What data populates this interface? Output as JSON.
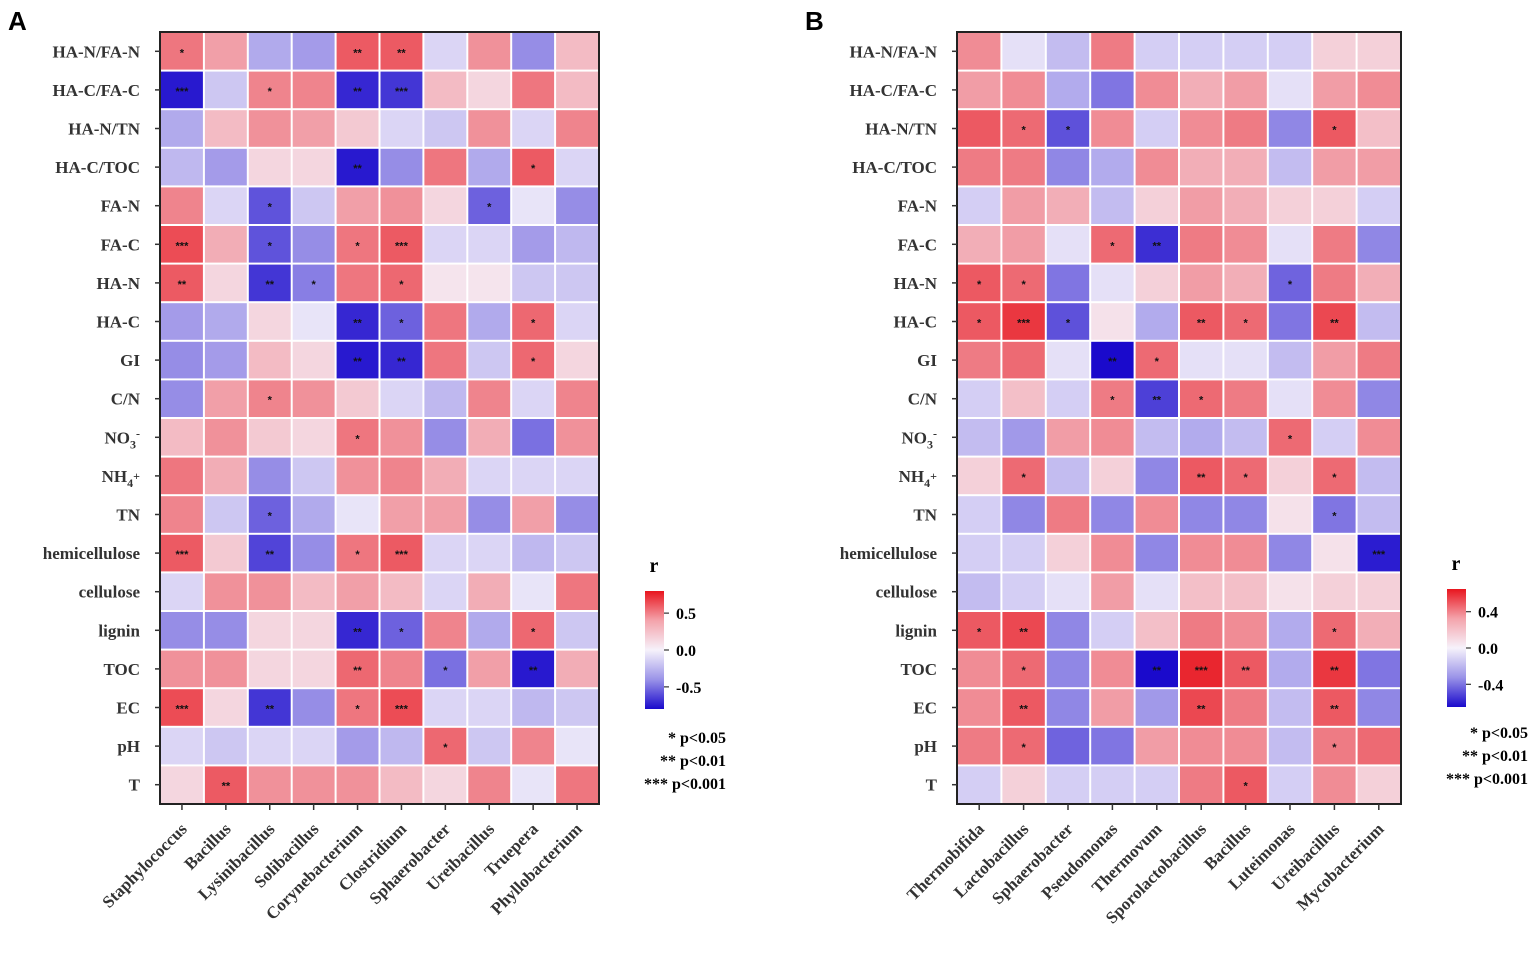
{
  "chart_data": [
    {
      "panel": "A",
      "type": "heatmap",
      "rows": [
        "HA-N/FA-N",
        "HA-C/FA-C",
        "HA-N/TN",
        "HA-C/TOC",
        "FA-N",
        "FA-C",
        "HA-N",
        "HA-C",
        "GI",
        "C/N",
        "NO3-",
        "NH4+",
        "TN",
        "hemicellulose",
        "cellulose",
        "lignin",
        "TOC",
        "EC",
        "pH",
        "T"
      ],
      "row_labels": [
        "HA-N/FA-N",
        "HA-C/FA-C",
        "HA-N/TN",
        "HA-C/TOC",
        "FA-N",
        "FA-C",
        "HA-N",
        "HA-C",
        "GI",
        "C/N",
        "NO",
        "NH",
        "TN",
        "hemicellulose",
        "cellulose",
        "lignin",
        "TOC",
        "EC",
        "pH",
        "T"
      ],
      "row_subs": [
        "",
        "",
        "",
        "",
        "",
        "",
        "",
        "",
        "",
        "",
        "3",
        "4",
        "",
        "",
        "",
        "",
        "",
        "",
        "",
        ""
      ],
      "row_sups": [
        "",
        "",
        "",
        "",
        "",
        "",
        "",
        "",
        "",
        "",
        "-",
        "+",
        "",
        "",
        "",
        "",
        "",
        "",
        "",
        ""
      ],
      "columns": [
        "Staphylococcus",
        "Bacillus",
        "Lysinibacillus",
        "Solibacillus",
        "Corynebacterium",
        "Clostridium",
        "Sphaerobacter",
        "Ureibacillus",
        "Truepera",
        "Phyllobacterium"
      ],
      "values": [
        [
          0.45,
          0.3,
          -0.25,
          -0.3,
          0.55,
          0.55,
          -0.1,
          0.35,
          -0.35,
          0.2
        ],
        [
          -0.75,
          -0.15,
          0.4,
          0.4,
          -0.7,
          -0.65,
          0.2,
          0.1,
          0.45,
          0.2
        ],
        [
          -0.25,
          0.2,
          0.35,
          0.3,
          0.15,
          -0.1,
          -0.15,
          0.35,
          -0.1,
          0.4
        ],
        [
          -0.2,
          -0.3,
          0.1,
          0.1,
          -0.75,
          -0.35,
          0.45,
          -0.25,
          0.55,
          -0.1
        ],
        [
          0.4,
          -0.1,
          -0.55,
          -0.15,
          0.3,
          0.35,
          0.1,
          -0.5,
          -0.05,
          -0.35
        ],
        [
          0.6,
          0.25,
          -0.55,
          -0.35,
          0.45,
          0.55,
          -0.1,
          -0.1,
          -0.3,
          -0.2
        ],
        [
          0.55,
          0.1,
          -0.65,
          -0.4,
          0.45,
          0.5,
          0.05,
          0.05,
          -0.15,
          -0.15
        ],
        [
          -0.3,
          -0.25,
          0.1,
          -0.05,
          -0.7,
          -0.5,
          0.45,
          -0.25,
          0.5,
          -0.1
        ],
        [
          -0.35,
          -0.3,
          0.2,
          0.1,
          -0.75,
          -0.7,
          0.45,
          -0.15,
          0.5,
          0.1
        ],
        [
          -0.35,
          0.3,
          0.4,
          0.35,
          0.15,
          -0.1,
          -0.2,
          0.4,
          -0.1,
          0.4
        ],
        [
          0.2,
          0.35,
          0.15,
          0.1,
          0.45,
          0.35,
          -0.35,
          0.25,
          -0.45,
          0.35
        ],
        [
          0.45,
          0.25,
          -0.35,
          -0.15,
          0.35,
          0.4,
          0.25,
          -0.1,
          -0.1,
          -0.1
        ],
        [
          0.4,
          -0.15,
          -0.5,
          -0.25,
          -0.05,
          0.3,
          0.3,
          -0.35,
          0.3,
          -0.35
        ],
        [
          0.55,
          0.15,
          -0.6,
          -0.35,
          0.45,
          0.55,
          -0.1,
          -0.1,
          -0.2,
          -0.15
        ],
        [
          -0.1,
          0.35,
          0.35,
          0.2,
          0.3,
          0.2,
          -0.1,
          0.25,
          -0.05,
          0.45
        ],
        [
          -0.35,
          -0.35,
          0.1,
          0.1,
          -0.7,
          -0.5,
          0.4,
          -0.25,
          0.5,
          -0.15
        ],
        [
          0.35,
          0.35,
          0.1,
          0.1,
          0.5,
          0.4,
          -0.45,
          0.3,
          -0.75,
          0.25
        ],
        [
          0.6,
          0.1,
          -0.65,
          -0.35,
          0.45,
          0.6,
          -0.1,
          -0.1,
          -0.2,
          -0.15
        ],
        [
          -0.1,
          -0.15,
          -0.1,
          -0.1,
          -0.3,
          -0.2,
          0.5,
          -0.15,
          0.4,
          -0.05
        ],
        [
          0.1,
          0.55,
          0.35,
          0.35,
          0.35,
          0.2,
          0.1,
          0.4,
          -0.05,
          0.45
        ]
      ],
      "significance": [
        [
          "*",
          "",
          "",
          "",
          "**",
          "**",
          "",
          "",
          "",
          ""
        ],
        [
          "***",
          "",
          "*",
          "",
          "**",
          "***",
          "",
          "",
          "",
          ""
        ],
        [
          "",
          "",
          "",
          "",
          "",
          "",
          "",
          "",
          "",
          ""
        ],
        [
          "",
          "",
          "",
          "",
          "**",
          "",
          "",
          "",
          "*",
          ""
        ],
        [
          "",
          "",
          "*",
          "",
          "",
          "",
          "",
          "*",
          "",
          ""
        ],
        [
          "***",
          "",
          "*",
          "",
          "*",
          "***",
          "",
          "",
          "",
          ""
        ],
        [
          "**",
          "",
          "**",
          "*",
          "",
          "*",
          "",
          "",
          "",
          ""
        ],
        [
          "",
          "",
          "",
          "",
          "**",
          "*",
          "",
          "",
          "*",
          ""
        ],
        [
          "",
          "",
          "",
          "",
          "**",
          "**",
          "",
          "",
          "*",
          ""
        ],
        [
          "",
          "",
          "*",
          "",
          "",
          "",
          "",
          "",
          "",
          ""
        ],
        [
          "",
          "",
          "",
          "",
          "*",
          "",
          "",
          "",
          "",
          ""
        ],
        [
          "",
          "",
          "",
          "",
          "",
          "",
          "",
          "",
          "",
          ""
        ],
        [
          "",
          "",
          "*",
          "",
          "",
          "",
          "",
          "",
          "",
          ""
        ],
        [
          "***",
          "",
          "**",
          "",
          "*",
          "***",
          "",
          "",
          "",
          ""
        ],
        [
          "",
          "",
          "",
          "",
          "",
          "",
          "",
          "",
          "",
          ""
        ],
        [
          "",
          "",
          "",
          "",
          "**",
          "*",
          "",
          "",
          "*",
          ""
        ],
        [
          "",
          "",
          "",
          "",
          "**",
          "",
          "*",
          "",
          "**",
          ""
        ],
        [
          "***",
          "",
          "**",
          "",
          "*",
          "***",
          "",
          "",
          "",
          ""
        ],
        [
          "",
          "",
          "",
          "",
          "",
          "",
          "*",
          "",
          "",
          ""
        ],
        [
          "",
          "**",
          "",
          "",
          "",
          "",
          "",
          "",
          "",
          ""
        ]
      ],
      "color_range": [
        -0.8,
        0.8
      ],
      "colorbar_ticks": [
        0.5,
        0.0,
        -0.5
      ],
      "colorbar_tick_labels": [
        "0.5",
        "0.0",
        "-0.5"
      ],
      "legend_title": "r",
      "significance_legend": [
        "* p<0.05",
        "** p<0.01",
        "*** p<0.001"
      ]
    },
    {
      "panel": "B",
      "type": "heatmap",
      "rows": [
        "HA-N/FA-N",
        "HA-C/FA-C",
        "HA-N/TN",
        "HA-C/TOC",
        "FA-N",
        "FA-C",
        "HA-N",
        "HA-C",
        "GI",
        "C/N",
        "NO3-",
        "NH4+",
        "TN",
        "hemicellulose",
        "cellulose",
        "lignin",
        "TOC",
        "EC",
        "pH",
        "T"
      ],
      "row_labels": [
        "HA-N/FA-N",
        "HA-C/FA-C",
        "HA-N/TN",
        "HA-C/TOC",
        "FA-N",
        "FA-C",
        "HA-N",
        "HA-C",
        "GI",
        "C/N",
        "NO",
        "NH",
        "TN",
        "hemicellulose",
        "cellulose",
        "lignin",
        "TOC",
        "EC",
        "pH",
        "T"
      ],
      "row_subs": [
        "",
        "",
        "",
        "",
        "",
        "",
        "",
        "",
        "",
        "",
        "3",
        "4",
        "",
        "",
        "",
        "",
        "",
        "",
        "",
        ""
      ],
      "row_sups": [
        "",
        "",
        "",
        "",
        "",
        "",
        "",
        "",
        "",
        "",
        "-",
        "+",
        "",
        "",
        "",
        "",
        "",
        "",
        "",
        ""
      ],
      "columns": [
        "Thermobifida",
        "Lactobacillus",
        "Sphaerobacter",
        "Pseudomonas",
        "Thermovum",
        "Sporolactobacillus",
        "Bacillus",
        "Luteimonas",
        "Ureibacillus",
        "Mycobacterium"
      ],
      "values": [
        [
          0.3,
          -0.05,
          -0.15,
          0.35,
          -0.1,
          -0.1,
          -0.1,
          -0.1,
          0.1,
          0.1
        ],
        [
          0.25,
          0.3,
          -0.2,
          -0.35,
          0.3,
          0.2,
          0.25,
          -0.05,
          0.25,
          0.3
        ],
        [
          0.45,
          0.4,
          -0.45,
          0.3,
          -0.1,
          0.3,
          0.35,
          -0.3,
          0.45,
          0.15
        ],
        [
          0.35,
          0.35,
          -0.3,
          -0.2,
          0.3,
          0.2,
          0.2,
          -0.15,
          0.25,
          0.25
        ],
        [
          -0.1,
          0.25,
          0.2,
          -0.15,
          0.1,
          0.25,
          0.2,
          0.1,
          0.1,
          -0.1
        ],
        [
          0.2,
          0.25,
          -0.05,
          0.4,
          -0.55,
          0.35,
          0.3,
          -0.05,
          0.35,
          -0.3
        ],
        [
          0.45,
          0.4,
          -0.35,
          -0.05,
          0.1,
          0.25,
          0.2,
          -0.4,
          0.35,
          0.2
        ],
        [
          0.45,
          0.55,
          -0.45,
          0.05,
          -0.2,
          0.45,
          0.4,
          -0.35,
          0.5,
          -0.15
        ],
        [
          0.35,
          0.4,
          -0.05,
          -0.65,
          0.4,
          -0.05,
          -0.05,
          -0.15,
          0.25,
          0.35
        ],
        [
          -0.1,
          0.15,
          -0.1,
          0.35,
          -0.5,
          0.4,
          0.35,
          -0.05,
          0.3,
          -0.3
        ],
        [
          -0.15,
          -0.25,
          0.25,
          0.3,
          -0.15,
          -0.2,
          -0.15,
          0.4,
          -0.1,
          0.3
        ],
        [
          0.1,
          0.4,
          -0.15,
          0.1,
          -0.3,
          0.45,
          0.4,
          0.1,
          0.4,
          -0.15
        ],
        [
          -0.1,
          -0.3,
          0.35,
          -0.3,
          0.3,
          -0.3,
          -0.3,
          0.05,
          -0.35,
          -0.15
        ],
        [
          -0.1,
          -0.1,
          0.1,
          0.3,
          -0.3,
          0.3,
          0.3,
          -0.3,
          0.05,
          -0.6
        ],
        [
          -0.15,
          -0.1,
          -0.05,
          0.25,
          -0.05,
          0.15,
          0.15,
          0.05,
          0.1,
          0.1
        ],
        [
          0.45,
          0.5,
          -0.3,
          -0.1,
          0.15,
          0.35,
          0.3,
          -0.2,
          0.4,
          0.2
        ],
        [
          0.3,
          0.4,
          -0.3,
          0.3,
          -0.65,
          0.6,
          0.45,
          -0.2,
          0.55,
          -0.35
        ],
        [
          0.3,
          0.45,
          -0.3,
          0.25,
          -0.25,
          0.5,
          0.35,
          -0.15,
          0.45,
          -0.3
        ],
        [
          0.35,
          0.4,
          -0.4,
          -0.35,
          0.25,
          0.3,
          0.3,
          -0.15,
          0.35,
          0.4
        ],
        [
          -0.1,
          0.1,
          -0.1,
          -0.1,
          -0.1,
          0.35,
          0.45,
          -0.1,
          0.3,
          0.1
        ]
      ],
      "significance": [
        [
          "",
          "",
          "",
          "",
          "",
          "",
          "",
          "",
          "",
          ""
        ],
        [
          "",
          "",
          "",
          "",
          "",
          "",
          "",
          "",
          "",
          ""
        ],
        [
          "",
          "*",
          "*",
          "",
          "",
          "",
          "",
          "",
          "*",
          ""
        ],
        [
          "",
          "",
          "",
          "",
          "",
          "",
          "",
          "",
          "",
          ""
        ],
        [
          "",
          "",
          "",
          "",
          "",
          "",
          "",
          "",
          "",
          ""
        ],
        [
          "",
          "",
          "",
          "*",
          "**",
          "",
          "",
          "",
          "",
          ""
        ],
        [
          "*",
          "*",
          "",
          "",
          "",
          "",
          "",
          "*",
          "",
          ""
        ],
        [
          "*",
          "***",
          "*",
          "",
          "",
          "**",
          "*",
          "",
          "**",
          ""
        ],
        [
          "",
          "",
          "",
          "**",
          "*",
          "",
          "",
          "",
          "",
          ""
        ],
        [
          "",
          "",
          "",
          "*",
          "**",
          "*",
          "",
          "",
          "",
          ""
        ],
        [
          "",
          "",
          "",
          "",
          "",
          "",
          "",
          "*",
          "",
          ""
        ],
        [
          "",
          "*",
          "",
          "",
          "",
          "**",
          "*",
          "",
          "*",
          ""
        ],
        [
          "",
          "",
          "",
          "",
          "",
          "",
          "",
          "",
          "*",
          ""
        ],
        [
          "",
          "",
          "",
          "",
          "",
          "",
          "",
          "",
          "",
          "***"
        ],
        [
          "",
          "",
          "",
          "",
          "",
          "",
          "",
          "",
          "",
          ""
        ],
        [
          "*",
          "**",
          "",
          "",
          "",
          "",
          "",
          "",
          "*",
          ""
        ],
        [
          "",
          "*",
          "",
          "",
          "**",
          "***",
          "**",
          "",
          "**",
          ""
        ],
        [
          "",
          "**",
          "",
          "",
          "",
          "**",
          "",
          "",
          "**",
          ""
        ],
        [
          "",
          "*",
          "",
          "",
          "",
          "",
          "",
          "",
          "*",
          ""
        ],
        [
          "",
          "",
          "",
          "",
          "",
          "",
          "*",
          "",
          "",
          ""
        ]
      ],
      "color_range": [
        -0.65,
        0.65
      ],
      "colorbar_ticks": [
        0.4,
        0.0,
        -0.4
      ],
      "colorbar_tick_labels": [
        "0.4",
        "0.0",
        "-0.4"
      ],
      "legend_title": "r",
      "significance_legend": [
        "* p<0.05",
        "** p<0.01",
        "*** p<0.001"
      ]
    }
  ]
}
